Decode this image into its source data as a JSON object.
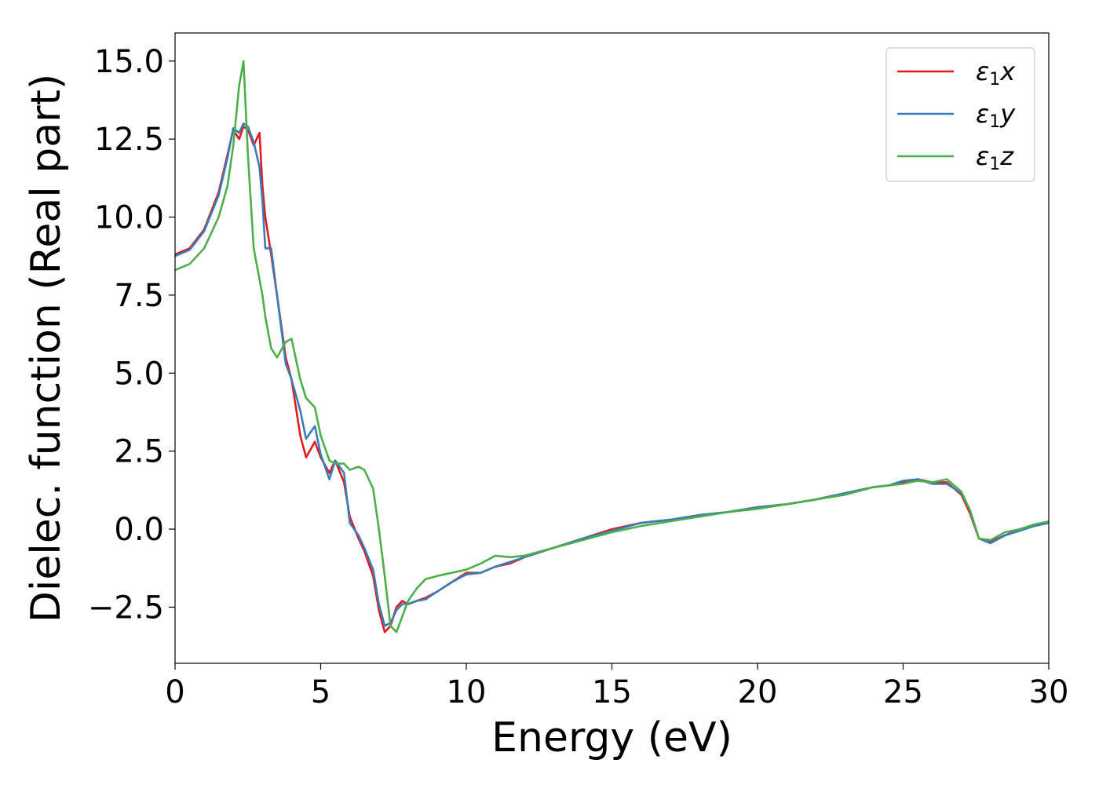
{
  "chart_data": {
    "type": "line",
    "title": "",
    "xlabel": "Energy (eV)",
    "ylabel": "Dielec. function (Real part)",
    "xlim": [
      0,
      30
    ],
    "ylim": [
      -4.3,
      15.9
    ],
    "xticks": [
      0,
      5,
      10,
      15,
      20,
      25,
      30
    ],
    "xtick_labels": [
      "0",
      "5",
      "10",
      "15",
      "20",
      "25",
      "30"
    ],
    "yticks": [
      -2.5,
      0.0,
      2.5,
      5.0,
      7.5,
      10.0,
      12.5,
      15.0
    ],
    "ytick_labels": [
      "−2.5",
      "0.0",
      "2.5",
      "5.0",
      "7.5",
      "10.0",
      "12.5",
      "15.0"
    ],
    "grid": false,
    "legend_position": "top-right",
    "series": [
      {
        "name": "ε1x",
        "legend_main": "ε",
        "legend_sub": "1",
        "legend_var": "x",
        "color": "#e41a1c",
        "x": [
          0,
          0.5,
          1.0,
          1.5,
          1.8,
          2.0,
          2.2,
          2.35,
          2.5,
          2.7,
          2.9,
          3.0,
          3.1,
          3.3,
          3.5,
          3.8,
          4.0,
          4.3,
          4.5,
          4.8,
          5.0,
          5.3,
          5.5,
          5.8,
          6.0,
          6.3,
          6.5,
          6.8,
          7.0,
          7.2,
          7.4,
          7.6,
          7.8,
          8.0,
          8.3,
          8.6,
          9.0,
          9.5,
          10.0,
          10.5,
          11.0,
          11.5,
          12.0,
          13.0,
          14.0,
          15.0,
          16.0,
          17.0,
          18.0,
          19.0,
          20.0,
          21.0,
          22.0,
          23.0,
          24.0,
          24.5,
          25.0,
          25.5,
          26.0,
          26.5,
          27.0,
          27.3,
          27.6,
          28.0,
          28.5,
          29.0,
          29.5,
          30.0
        ],
        "y": [
          8.8,
          9.0,
          9.6,
          10.8,
          12.0,
          12.8,
          12.5,
          12.9,
          12.8,
          12.3,
          12.7,
          11.0,
          10.0,
          8.8,
          7.5,
          5.5,
          4.8,
          3.0,
          2.3,
          2.8,
          2.3,
          1.8,
          2.2,
          1.5,
          0.4,
          -0.3,
          -0.7,
          -1.5,
          -2.6,
          -3.3,
          -3.1,
          -2.5,
          -2.3,
          -2.4,
          -2.3,
          -2.2,
          -2.0,
          -1.7,
          -1.4,
          -1.4,
          -1.2,
          -1.1,
          -0.9,
          -0.6,
          -0.3,
          0.0,
          0.2,
          0.3,
          0.45,
          0.55,
          0.7,
          0.8,
          0.95,
          1.15,
          1.35,
          1.4,
          1.5,
          1.6,
          1.5,
          1.5,
          1.1,
          0.5,
          -0.3,
          -0.4,
          -0.2,
          0.0,
          0.1,
          0.2
        ]
      },
      {
        "name": "ε1y",
        "legend_main": "ε",
        "legend_sub": "1",
        "legend_var": "y",
        "color": "#377eb8",
        "x": [
          0,
          0.5,
          1.0,
          1.5,
          1.8,
          2.0,
          2.2,
          2.35,
          2.5,
          2.7,
          2.9,
          3.0,
          3.1,
          3.3,
          3.5,
          3.8,
          4.0,
          4.3,
          4.5,
          4.8,
          5.0,
          5.3,
          5.5,
          5.8,
          6.0,
          6.3,
          6.5,
          6.8,
          7.0,
          7.2,
          7.4,
          7.6,
          7.8,
          8.0,
          8.3,
          8.6,
          9.0,
          9.5,
          10.0,
          10.5,
          11.0,
          11.5,
          12.0,
          13.0,
          14.0,
          15.0,
          16.0,
          17.0,
          18.0,
          19.0,
          20.0,
          21.0,
          22.0,
          23.0,
          24.0,
          24.5,
          25.0,
          25.5,
          26.0,
          26.5,
          27.0,
          27.3,
          27.6,
          28.0,
          28.5,
          29.0,
          29.5,
          30.0
        ],
        "y": [
          8.75,
          8.95,
          9.55,
          10.7,
          11.9,
          12.85,
          12.7,
          13.0,
          12.9,
          12.4,
          11.6,
          10.5,
          9.0,
          9.0,
          7.5,
          5.3,
          4.8,
          3.8,
          2.9,
          3.3,
          2.4,
          1.6,
          2.2,
          1.8,
          0.2,
          -0.2,
          -0.6,
          -1.3,
          -2.4,
          -3.1,
          -3.0,
          -2.6,
          -2.4,
          -2.4,
          -2.3,
          -2.25,
          -2.0,
          -1.7,
          -1.45,
          -1.4,
          -1.2,
          -1.05,
          -0.9,
          -0.6,
          -0.3,
          -0.05,
          0.2,
          0.3,
          0.45,
          0.55,
          0.7,
          0.8,
          0.95,
          1.15,
          1.35,
          1.4,
          1.55,
          1.6,
          1.45,
          1.45,
          1.15,
          0.6,
          -0.3,
          -0.45,
          -0.2,
          -0.05,
          0.1,
          0.2
        ]
      },
      {
        "name": "ε1z",
        "legend_main": "ε",
        "legend_sub": "1",
        "legend_var": "z",
        "color": "#4daf4a",
        "x": [
          0,
          0.5,
          1.0,
          1.5,
          1.8,
          2.0,
          2.2,
          2.35,
          2.5,
          2.7,
          2.9,
          3.0,
          3.1,
          3.3,
          3.5,
          3.8,
          4.0,
          4.3,
          4.5,
          4.8,
          5.0,
          5.3,
          5.5,
          5.8,
          6.0,
          6.3,
          6.5,
          6.8,
          7.0,
          7.2,
          7.4,
          7.6,
          7.8,
          8.0,
          8.3,
          8.6,
          9.0,
          9.5,
          10.0,
          10.5,
          11.0,
          11.5,
          12.0,
          13.0,
          14.0,
          15.0,
          16.0,
          17.0,
          18.0,
          19.0,
          20.0,
          21.0,
          22.0,
          23.0,
          24.0,
          24.5,
          25.0,
          25.5,
          26.0,
          26.5,
          27.0,
          27.3,
          27.6,
          28.0,
          28.5,
          29.0,
          29.5,
          30.0
        ],
        "y": [
          8.3,
          8.5,
          9.0,
          10.0,
          11.0,
          12.3,
          14.2,
          15.0,
          12.0,
          9.0,
          8.0,
          7.5,
          6.8,
          5.8,
          5.5,
          6.0,
          6.1,
          4.8,
          4.2,
          3.9,
          3.0,
          2.2,
          2.1,
          2.1,
          1.9,
          2.0,
          1.9,
          1.3,
          0.0,
          -1.5,
          -3.1,
          -3.3,
          -2.8,
          -2.3,
          -1.9,
          -1.6,
          -1.5,
          -1.4,
          -1.3,
          -1.1,
          -0.85,
          -0.9,
          -0.85,
          -0.6,
          -0.35,
          -0.1,
          0.1,
          0.25,
          0.4,
          0.55,
          0.65,
          0.8,
          0.95,
          1.1,
          1.35,
          1.4,
          1.45,
          1.55,
          1.5,
          1.6,
          1.2,
          0.6,
          -0.3,
          -0.35,
          -0.1,
          0.0,
          0.15,
          0.25
        ]
      }
    ]
  }
}
